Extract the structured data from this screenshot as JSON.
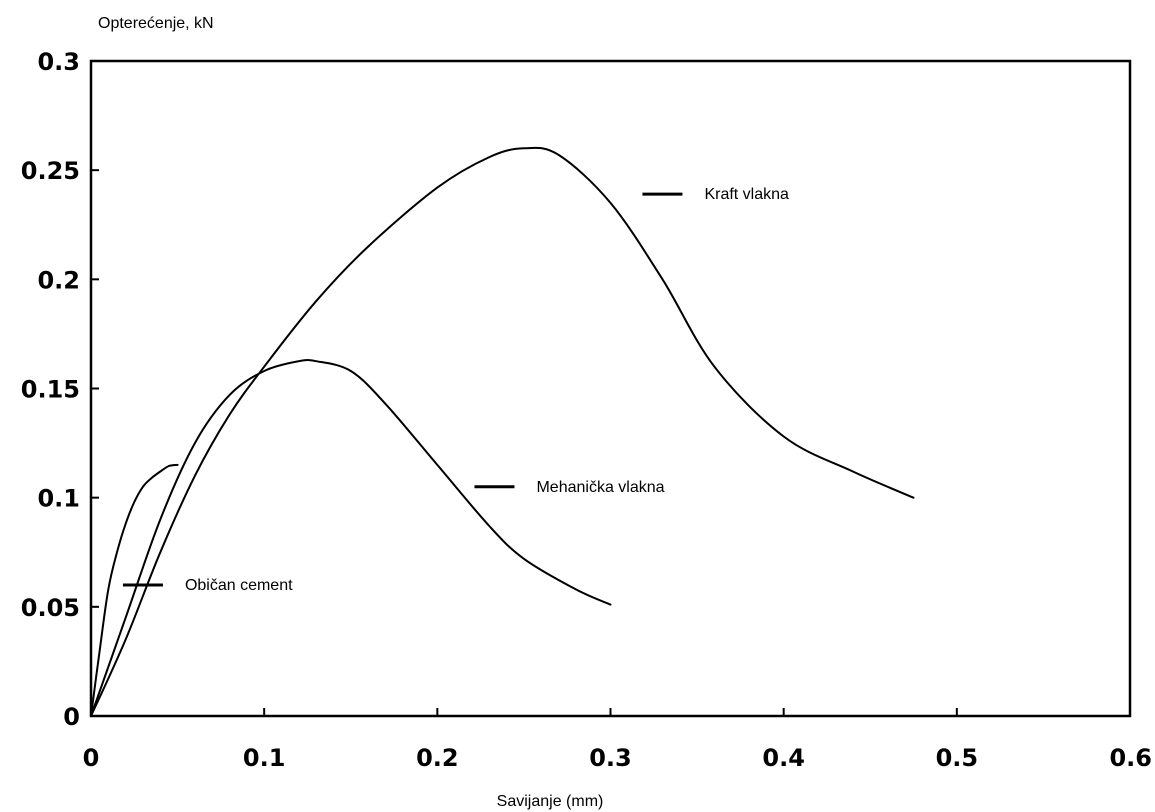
{
  "chart_data": {
    "type": "line",
    "ylabel": "Opterećenje, kN",
    "xlabel": "Savijanje (mm)",
    "xlim": [
      0,
      0.6
    ],
    "ylim": [
      0,
      0.3
    ],
    "x_ticks": [
      "0",
      "0.1",
      "0.2",
      "0.3",
      "0.4",
      "0.5",
      "0.6"
    ],
    "y_ticks": [
      "0",
      "0.05",
      "0.1",
      "0.15",
      "0.2",
      "0.25",
      "0.3"
    ],
    "grid": false,
    "series": [
      {
        "name": "Običan cement",
        "x": [
          0,
          0.005,
          0.01,
          0.015,
          0.02,
          0.025,
          0.03,
          0.035,
          0.04,
          0.045,
          0.05
        ],
        "y": [
          0,
          0.03,
          0.058,
          0.075,
          0.088,
          0.098,
          0.105,
          0.109,
          0.112,
          0.1145,
          0.115
        ]
      },
      {
        "name": "Mehanička vlakna",
        "x": [
          0,
          0.02,
          0.04,
          0.06,
          0.08,
          0.1,
          0.12,
          0.13,
          0.15,
          0.17,
          0.2,
          0.23,
          0.25,
          0.28,
          0.3
        ],
        "y": [
          0,
          0.045,
          0.09,
          0.125,
          0.147,
          0.158,
          0.1625,
          0.1625,
          0.158,
          0.143,
          0.115,
          0.087,
          0.072,
          0.058,
          0.051
        ]
      },
      {
        "name": "Kraft vlakna",
        "x": [
          0,
          0.02,
          0.04,
          0.06,
          0.08,
          0.1,
          0.13,
          0.16,
          0.2,
          0.23,
          0.25,
          0.27,
          0.3,
          0.33,
          0.36,
          0.4,
          0.44,
          0.475
        ],
        "y": [
          0,
          0.035,
          0.075,
          0.11,
          0.138,
          0.16,
          0.19,
          0.215,
          0.242,
          0.256,
          0.26,
          0.257,
          0.235,
          0.2,
          0.16,
          0.128,
          0.112,
          0.1
        ]
      }
    ],
    "annotations": [
      {
        "text": "Kraft vlakna",
        "series": 2,
        "leader_at": [
          0.33,
          0.239
        ]
      },
      {
        "text": "Mehanička vlakna",
        "series": 1,
        "leader_at": [
          0.233,
          0.105
        ]
      },
      {
        "text": "Običan cement",
        "series": 0,
        "leader_at": [
          0.03,
          0.06
        ]
      }
    ]
  }
}
